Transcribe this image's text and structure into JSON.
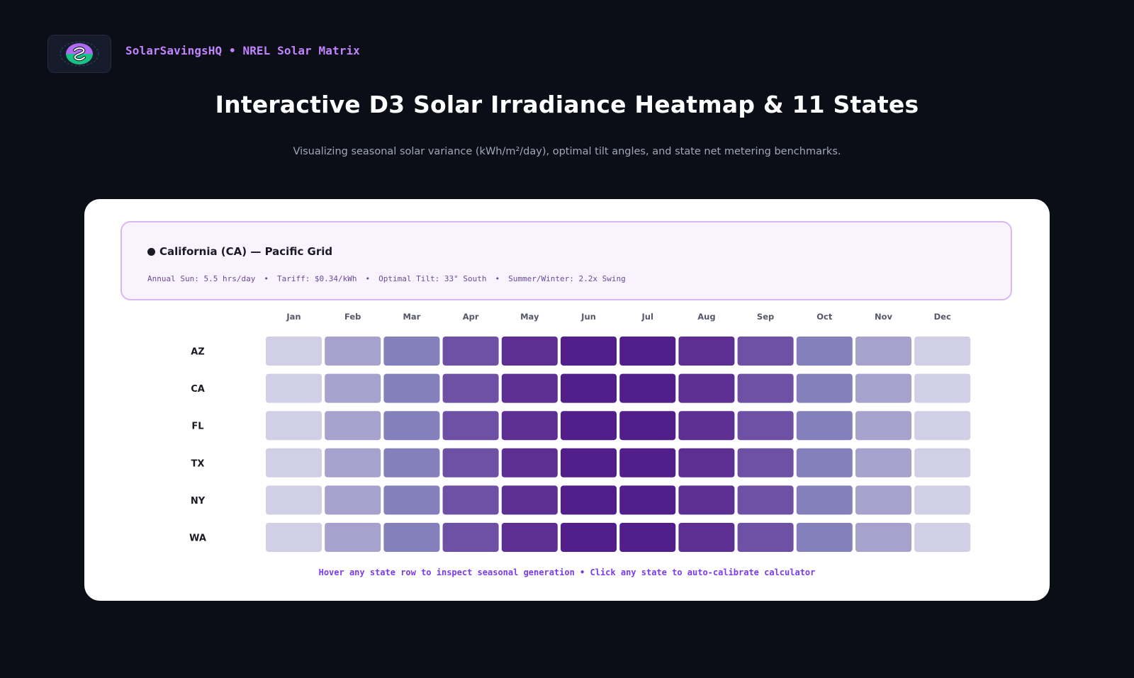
{
  "header": {
    "brand": "SolarSavingsHQ • NREL Solar Matrix",
    "title": "Interactive D3 Solar Irradiance Heatmap & 11 States",
    "subtitle": "Visualizing seasonal solar variance (kWh/m²/day), optimal tilt angles, and state net metering benchmarks."
  },
  "info": {
    "title": "California (CA) — Pacific Grid",
    "stats": [
      "Annual Sun: 5.5 hrs/day",
      "Tariff: $0.34/kWh",
      "Optimal Tilt: 33° South",
      "Summer/Winter: 2.2x Swing"
    ],
    "separator": "•"
  },
  "footnote": "Hover any state row to inspect seasonal generation • Click any state to auto-calibrate calculator",
  "colors": {
    "background": "#0b0d17",
    "brand": "#c084fc",
    "accent": "#7c3aed",
    "scale": [
      "#d0cfe6",
      "#a6a2cd",
      "#8480bb",
      "#6e51a4",
      "#5e2f93",
      "#521e89"
    ]
  },
  "chart_data": {
    "type": "heatmap",
    "x": [
      "Jan",
      "Feb",
      "Mar",
      "Apr",
      "May",
      "Jun",
      "Jul",
      "Aug",
      "Sep",
      "Oct",
      "Nov",
      "Dec"
    ],
    "y": [
      "AZ",
      "CA",
      "FL",
      "TX",
      "NY",
      "WA"
    ],
    "values": [
      [
        1,
        2,
        3,
        4,
        5,
        6,
        6,
        5,
        4,
        3,
        2,
        1
      ],
      [
        1,
        2,
        3,
        4,
        5,
        6,
        6,
        5,
        4,
        3,
        2,
        1
      ],
      [
        1,
        2,
        3,
        4,
        5,
        6,
        6,
        5,
        4,
        3,
        2,
        1
      ],
      [
        1,
        2,
        3,
        4,
        5,
        6,
        6,
        5,
        4,
        3,
        2,
        1
      ],
      [
        1,
        2,
        3,
        4,
        5,
        6,
        6,
        5,
        4,
        3,
        2,
        1
      ],
      [
        1,
        2,
        3,
        4,
        5,
        6,
        6,
        5,
        4,
        3,
        2,
        1
      ]
    ],
    "title": "",
    "xlabel": "",
    "ylabel": ""
  }
}
